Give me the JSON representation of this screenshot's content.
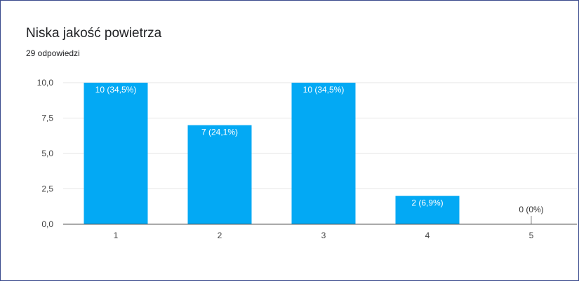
{
  "header": {
    "title": "Niska jakość powietrza",
    "subtitle": "29 odpowiedzi"
  },
  "chart_data": {
    "type": "bar",
    "categories": [
      "1",
      "2",
      "3",
      "4",
      "5"
    ],
    "values": [
      10,
      7,
      10,
      2,
      0
    ],
    "data_labels": [
      "10 (34,5%)",
      "7 (24,1%)",
      "10 (34,5%)",
      "2 (6,9%)",
      "0 (0%)"
    ],
    "y_ticks": [
      "0,0",
      "2,5",
      "5,0",
      "7,5",
      "10,0"
    ],
    "ylim": [
      0,
      10
    ],
    "grid": true,
    "colors": {
      "bar": "#03a9f4",
      "grid": "#e6e6e6",
      "axis": "#555555"
    }
  }
}
